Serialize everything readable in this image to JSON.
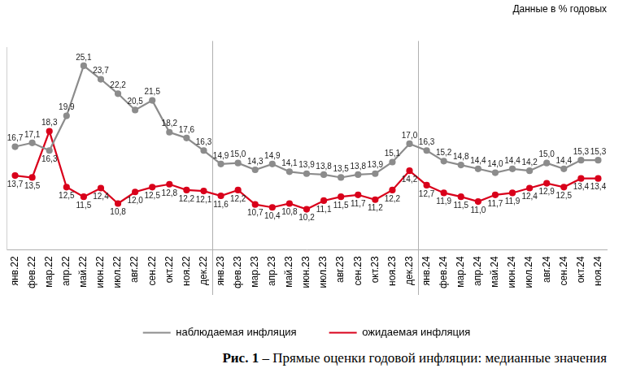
{
  "chart_data": {
    "type": "line",
    "subtitle": "Данные в % годовых",
    "caption": "Рис. 1 – Прямые оценки годовой инфляции: медианные значения",
    "categories": [
      "янв.22",
      "фев.22",
      "мар.22",
      "апр.22",
      "май.22",
      "июн.22",
      "июл.22",
      "авг.22",
      "сен.22",
      "окт.22",
      "ноя.22",
      "дек.22",
      "янв.23",
      "фев.23",
      "мар.23",
      "апр.23",
      "май.23",
      "июн.23",
      "июл.23",
      "авг.23",
      "сен.23",
      "окт.23",
      "ноя.23",
      "дек.23",
      "янв.24",
      "фев.24",
      "мар.24",
      "апр.24",
      "май.24",
      "июн.24",
      "июл.24",
      "авг.24",
      "сен.24",
      "окт.24",
      "ноя.24"
    ],
    "series": [
      {
        "name": "наблюдаемая инфляция",
        "color": "#8c8c8c",
        "marker": "circle",
        "line_style": "solid",
        "values": [
          16.7,
          17.1,
          16.3,
          19.9,
          25.1,
          23.7,
          22.2,
          20.5,
          21.5,
          18.2,
          17.6,
          16.3,
          14.9,
          15.0,
          14.3,
          14.9,
          14.1,
          13.9,
          13.8,
          13.5,
          13.8,
          13.9,
          15.1,
          17.0,
          16.3,
          15.2,
          14.8,
          14.4,
          14.0,
          14.4,
          14.2,
          15.0,
          14.4,
          15.3,
          15.3
        ],
        "value_labels": [
          "16,7",
          "17,1",
          "16,3",
          "19,9",
          "25,1",
          "23,7",
          "22,2",
          "20,5",
          "21,5",
          "18,2",
          "17,6",
          "16,3",
          "14,9",
          "15,0",
          "14,3",
          "14,9",
          "14,1",
          "13,9",
          "13,8",
          "13,5",
          "13,8",
          "13,9",
          "15,1",
          "17,0",
          "16,3",
          "15,2",
          "14,8",
          "14,4",
          "14,0",
          "14,4",
          "14,2",
          "15,0",
          "14,4",
          "15,3",
          "15,3"
        ]
      },
      {
        "name": "ожидаемая инфляция",
        "color": "#d9001b",
        "marker": "circle",
        "line_style": "solid",
        "values": [
          13.7,
          13.5,
          18.3,
          12.5,
          11.5,
          12.4,
          10.8,
          12.0,
          12.5,
          12.8,
          12.2,
          12.1,
          11.6,
          12.2,
          10.7,
          10.4,
          10.8,
          10.2,
          11.1,
          11.5,
          11.7,
          11.2,
          12.2,
          14.2,
          12.7,
          11.9,
          11.5,
          11.0,
          11.7,
          11.9,
          12.4,
          12.9,
          12.5,
          13.4,
          13.4
        ],
        "value_labels": [
          "13,7",
          "13,5",
          "18,3",
          "12,5",
          "11,5",
          "12,4",
          "10,8",
          "12,0",
          "12,5",
          "12,8",
          "12,2",
          "12,1",
          "11,6",
          "12,2",
          "10,7",
          "10,4",
          "10,8",
          "10,2",
          "11,1",
          "11,5",
          "11,7",
          "11,2",
          "12,2",
          "14,2",
          "12,7",
          "11,9",
          "11,5",
          "11,0",
          "11,7",
          "11,9",
          "12,4",
          "12,9",
          "12,5",
          "13,4",
          "13,4"
        ]
      }
    ],
    "ylim": [
      6,
      27
    ],
    "grid": false,
    "legend": "bottom",
    "data_labels": true,
    "tick_labels": "x"
  }
}
